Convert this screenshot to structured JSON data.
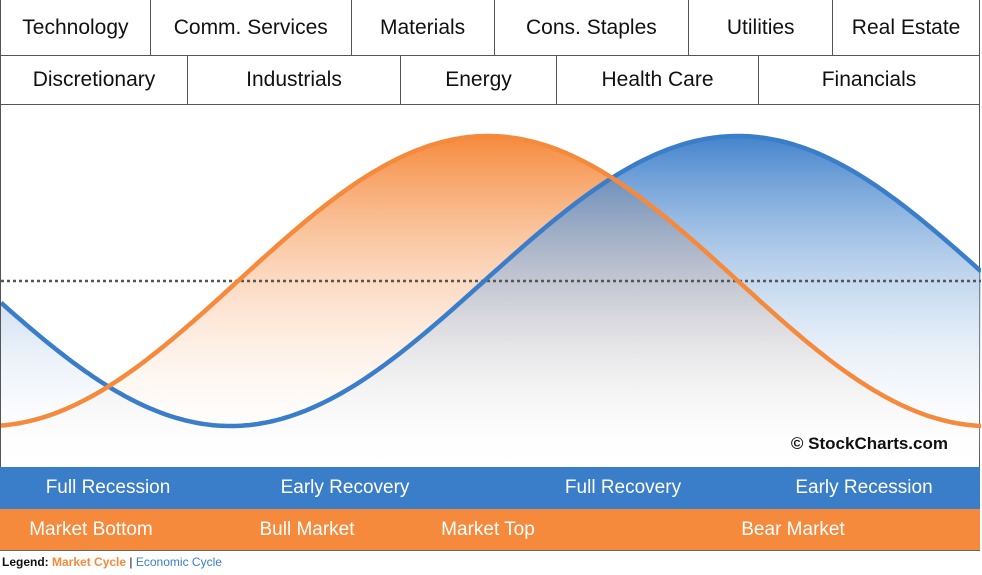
{
  "sectors_row1": [
    "Technology",
    "Comm. Services",
    "Materials",
    "Cons. Staples",
    "Utilities",
    "Real Estate"
  ],
  "sectors_row2": [
    "Discretionary",
    "Industrials",
    "Energy",
    "Health Care",
    "Financials"
  ],
  "economic_phases": [
    "Full Recession",
    "Early Recovery",
    "Full Recovery",
    "Early Recession"
  ],
  "market_phases": [
    "Market Bottom",
    "Bull Market",
    "Market Top",
    "Bear Market"
  ],
  "copyright": "© StockCharts.com",
  "legend": {
    "label": "Legend:",
    "market": "Market Cycle",
    "separator": "|",
    "economic": "Economic Cycle"
  },
  "colors": {
    "market_cycle": "#f58a3d",
    "economic_cycle": "#3a7dc9",
    "midline": "#555555"
  }
}
